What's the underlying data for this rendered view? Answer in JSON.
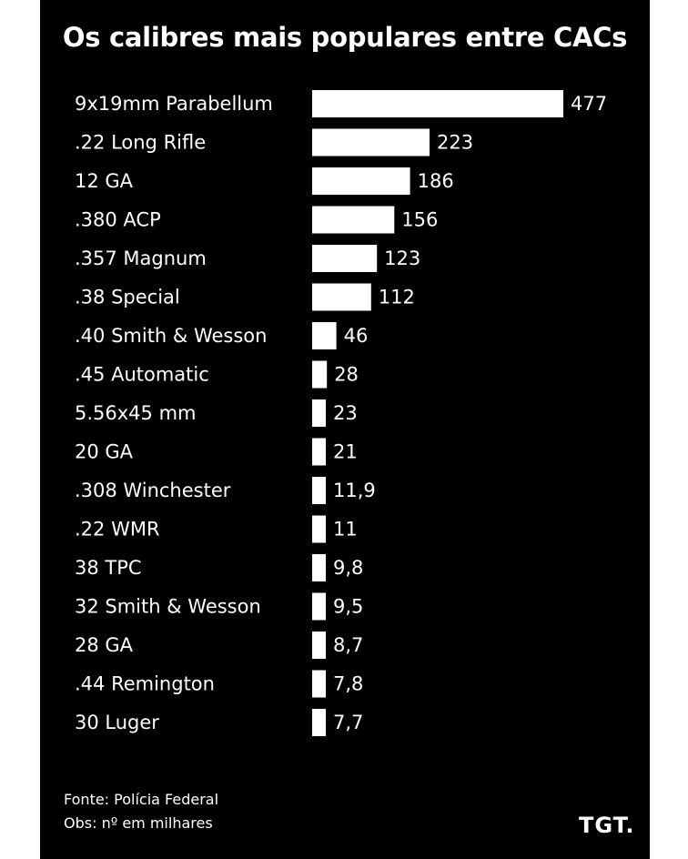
{
  "chart_data": {
    "type": "bar",
    "orientation": "horizontal",
    "title": "Os calibres mais populares entre CACs",
    "categories": [
      "9x19mm Parabellum",
      ".22 Long Rifle",
      "12 GA",
      ".380 ACP",
      ".357 Magnum",
      ".38 Special",
      ".40 Smith & Wesson",
      ".45 Automatic",
      "5.56x45 mm",
      "20 GA",
      ".308 Winchester",
      ".22 WMR",
      "38 TPC",
      "32 Smith & Wesson",
      "28 GA",
      ".44 Remington",
      "30 Luger"
    ],
    "values": [
      477,
      223,
      186,
      156,
      123,
      112,
      46,
      28,
      23,
      21,
      11.9,
      11,
      9.8,
      9.5,
      8.7,
      7.8,
      7.7
    ],
    "value_labels": [
      "477",
      "223",
      "186",
      "156",
      "123",
      "112",
      "46",
      "28",
      "23",
      "21",
      "11,9",
      "11",
      "9,8",
      "9,5",
      "8,7",
      "7,8",
      "7,7"
    ],
    "xlabel": "",
    "ylabel": "",
    "grid": false,
    "legend": "none"
  },
  "footer": {
    "source": "Fonte: Polícia Federal",
    "note": "Obs: nº em milhares",
    "brand": "TGT."
  },
  "colors": {
    "background": "#000000",
    "bar": "#ffffff",
    "text": "#ffffff"
  }
}
